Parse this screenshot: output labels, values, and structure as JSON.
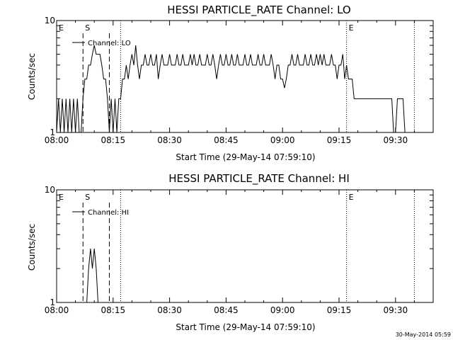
{
  "chart_data": [
    {
      "type": "line",
      "title": "HESSI PARTICLE_RATE Channel: LO",
      "xlabel": "Start Time (29-May-14 07:59:10)",
      "ylabel": "Counts/sec",
      "x_ticks": [
        "08:00",
        "08:15",
        "08:30",
        "08:45",
        "09:00",
        "09:15",
        "09:30"
      ],
      "y_ticks": [
        "1",
        "10"
      ],
      "y_scale": "log",
      "ylim": [
        1,
        10
      ],
      "xlim": [
        "08:00",
        "09:40"
      ],
      "legend": {
        "entries": [
          "Channel: LO"
        ],
        "placement": "top-left"
      },
      "markers": [
        {
          "label": "E",
          "time": "08:00",
          "style": "none"
        },
        {
          "label": "S",
          "time": "08:07",
          "style": "dashed"
        },
        {
          "label": "",
          "time": "08:14",
          "style": "dashed"
        },
        {
          "label": "",
          "time": "08:17",
          "style": "dotted"
        },
        {
          "label": "E",
          "time": "09:17",
          "style": "dotted"
        },
        {
          "label": "",
          "time": "09:35",
          "style": "dotted"
        }
      ],
      "series": [
        {
          "name": "Channel: LO",
          "points": [
            [
              "08:00",
              1
            ],
            [
              "08:00:30",
              2
            ],
            [
              "08:01",
              1
            ],
            [
              "08:01:30",
              2
            ],
            [
              "08:02",
              1
            ],
            [
              "08:02:30",
              2
            ],
            [
              "08:03",
              1
            ],
            [
              "08:03:30",
              2
            ],
            [
              "08:04",
              1
            ],
            [
              "08:04:30",
              2
            ],
            [
              "08:05",
              1
            ],
            [
              "08:05:30",
              2
            ],
            [
              "08:06",
              1
            ],
            [
              "08:06:30",
              1
            ],
            [
              "08:07",
              2
            ],
            [
              "08:07:30",
              3
            ],
            [
              "08:08",
              3
            ],
            [
              "08:08:30",
              4
            ],
            [
              "08:09",
              4
            ],
            [
              "08:09:30",
              5
            ],
            [
              "08:10",
              6
            ],
            [
              "08:10:30",
              5
            ],
            [
              "08:11",
              5
            ],
            [
              "08:11:30",
              5
            ],
            [
              "08:12",
              4
            ],
            [
              "08:12:30",
              3
            ],
            [
              "08:13",
              3
            ],
            [
              "08:13:30",
              2
            ],
            [
              "08:14",
              1
            ],
            [
              "08:14:30",
              2
            ],
            [
              "08:15",
              1
            ],
            [
              "08:15:30",
              2
            ],
            [
              "08:16",
              1
            ],
            [
              "08:16:30",
              2
            ],
            [
              "08:17",
              2
            ],
            [
              "08:17:30",
              3
            ],
            [
              "08:18",
              3
            ],
            [
              "08:18:30",
              4
            ],
            [
              "08:19",
              3
            ],
            [
              "08:19:30",
              4
            ],
            [
              "08:20",
              5
            ],
            [
              "08:20:30",
              4
            ],
            [
              "08:21",
              6
            ],
            [
              "08:21:30",
              4
            ],
            [
              "08:22",
              3
            ],
            [
              "08:22:30",
              4
            ],
            [
              "08:23",
              4
            ],
            [
              "08:23:30",
              5
            ],
            [
              "08:24",
              4
            ],
            [
              "08:24:30",
              4
            ],
            [
              "08:25",
              5
            ],
            [
              "08:25:30",
              4
            ],
            [
              "08:26",
              4
            ],
            [
              "08:26:30",
              5
            ],
            [
              "08:27",
              3
            ],
            [
              "08:27:30",
              4
            ],
            [
              "08:28",
              5
            ],
            [
              "08:28:30",
              4
            ],
            [
              "08:29",
              4
            ],
            [
              "08:29:30",
              4
            ],
            [
              "08:30",
              5
            ],
            [
              "08:30:30",
              4
            ],
            [
              "08:31",
              4
            ],
            [
              "08:31:30",
              4
            ],
            [
              "08:32",
              5
            ],
            [
              "08:32:30",
              4
            ],
            [
              "08:33",
              4
            ],
            [
              "08:33:30",
              5
            ],
            [
              "08:34",
              4
            ],
            [
              "08:34:30",
              4
            ],
            [
              "08:35",
              4
            ],
            [
              "08:35:30",
              5
            ],
            [
              "08:36",
              4
            ],
            [
              "08:36:30",
              5
            ],
            [
              "08:37",
              4
            ],
            [
              "08:37:30",
              4
            ],
            [
              "08:38",
              5
            ],
            [
              "08:38:30",
              4
            ],
            [
              "08:39",
              4
            ],
            [
              "08:39:30",
              4
            ],
            [
              "08:40",
              5
            ],
            [
              "08:40:30",
              4
            ],
            [
              "08:41",
              4
            ],
            [
              "08:41:30",
              5
            ],
            [
              "08:42",
              4
            ],
            [
              "08:42:30",
              3
            ],
            [
              "08:43",
              4
            ],
            [
              "08:43:30",
              5
            ],
            [
              "08:44",
              4
            ],
            [
              "08:44:30",
              4
            ],
            [
              "08:45",
              5
            ],
            [
              "08:45:30",
              4
            ],
            [
              "08:46",
              4
            ],
            [
              "08:46:30",
              5
            ],
            [
              "08:47",
              4
            ],
            [
              "08:47:30",
              4
            ],
            [
              "08:48",
              5
            ],
            [
              "08:48:30",
              4
            ],
            [
              "08:49",
              4
            ],
            [
              "08:49:30",
              4
            ],
            [
              "08:50",
              5
            ],
            [
              "08:50:30",
              4
            ],
            [
              "08:51",
              4
            ],
            [
              "08:51:30",
              5
            ],
            [
              "08:52",
              4
            ],
            [
              "08:52:30",
              4
            ],
            [
              "08:53",
              4
            ],
            [
              "08:53:30",
              5
            ],
            [
              "08:54",
              4
            ],
            [
              "08:54:30",
              4
            ],
            [
              "08:55",
              5
            ],
            [
              "08:55:30",
              4
            ],
            [
              "08:56",
              4
            ],
            [
              "08:56:30",
              4
            ],
            [
              "08:57",
              5
            ],
            [
              "08:57:30",
              4
            ],
            [
              "08:58",
              3
            ],
            [
              "08:58:30",
              4
            ],
            [
              "08:59",
              4
            ],
            [
              "08:59:30",
              3
            ],
            [
              "09:00",
              3
            ],
            [
              "09:00:30",
              2.5
            ],
            [
              "09:01",
              3
            ],
            [
              "09:01:30",
              4
            ],
            [
              "09:02",
              4
            ],
            [
              "09:02:30",
              5
            ],
            [
              "09:03",
              4
            ],
            [
              "09:03:30",
              4
            ],
            [
              "09:04",
              5
            ],
            [
              "09:04:30",
              4
            ],
            [
              "09:05",
              4
            ],
            [
              "09:05:30",
              4
            ],
            [
              "09:06",
              5
            ],
            [
              "09:06:30",
              4
            ],
            [
              "09:07",
              4
            ],
            [
              "09:07:30",
              5
            ],
            [
              "09:08",
              4
            ],
            [
              "09:08:30",
              4
            ],
            [
              "09:09",
              5
            ],
            [
              "09:09:30",
              4
            ],
            [
              "09:10",
              5
            ],
            [
              "09:10:30",
              4
            ],
            [
              "09:11",
              5
            ],
            [
              "09:11:30",
              4
            ],
            [
              "09:12",
              4
            ],
            [
              "09:12:30",
              4
            ],
            [
              "09:13",
              5
            ],
            [
              "09:13:30",
              4
            ],
            [
              "09:14",
              4
            ],
            [
              "09:14:30",
              3
            ],
            [
              "09:15",
              4
            ],
            [
              "09:15:30",
              4
            ],
            [
              "09:16",
              5
            ],
            [
              "09:16:30",
              3
            ],
            [
              "09:17",
              4
            ],
            [
              "09:17:30",
              3
            ],
            [
              "09:18",
              3
            ],
            [
              "09:18:30",
              3
            ],
            [
              "09:19",
              2
            ],
            [
              "09:19:30",
              2
            ],
            [
              "09:20",
              2
            ],
            [
              "09:21",
              2
            ],
            [
              "09:22",
              2
            ],
            [
              "09:23",
              2
            ],
            [
              "09:24",
              2
            ],
            [
              "09:25",
              2
            ],
            [
              "09:26",
              2
            ],
            [
              "09:27",
              2
            ],
            [
              "09:28",
              2
            ],
            [
              "09:29",
              2
            ],
            [
              "09:29:30",
              1
            ],
            [
              "09:30",
              1
            ],
            [
              "09:30:30",
              2
            ],
            [
              "09:31",
              2
            ],
            [
              "09:32",
              2
            ],
            [
              "09:32:30",
              1
            ],
            [
              "09:33",
              1
            ]
          ]
        }
      ]
    },
    {
      "type": "line",
      "title": "HESSI PARTICLE_RATE Channel: HI",
      "xlabel": "Start Time (29-May-14 07:59:10)",
      "ylabel": "Counts/sec",
      "x_ticks": [
        "08:00",
        "08:15",
        "08:30",
        "08:45",
        "09:00",
        "09:15",
        "09:30"
      ],
      "y_ticks": [
        "1",
        "10"
      ],
      "y_scale": "log",
      "ylim": [
        1,
        10
      ],
      "xlim": [
        "08:00",
        "09:40"
      ],
      "legend": {
        "entries": [
          "Channel: HI"
        ],
        "placement": "top-left"
      },
      "markers": [
        {
          "label": "E",
          "time": "08:00",
          "style": "none"
        },
        {
          "label": "S",
          "time": "08:07",
          "style": "dashed"
        },
        {
          "label": "",
          "time": "08:14",
          "style": "dashed"
        },
        {
          "label": "",
          "time": "08:17",
          "style": "dotted"
        },
        {
          "label": "E",
          "time": "09:17",
          "style": "dotted"
        },
        {
          "label": "",
          "time": "09:35",
          "style": "dotted"
        }
      ],
      "series": [
        {
          "name": "Channel: HI",
          "points": [
            [
              "08:08",
              1
            ],
            [
              "08:08:30",
              2
            ],
            [
              "08:09",
              3
            ],
            [
              "08:09:30",
              2
            ],
            [
              "08:10",
              3
            ],
            [
              "08:10:30",
              2
            ],
            [
              "08:11",
              1
            ]
          ]
        }
      ]
    }
  ],
  "footer": {
    "timestamp": "30-May-2014 05:59"
  }
}
